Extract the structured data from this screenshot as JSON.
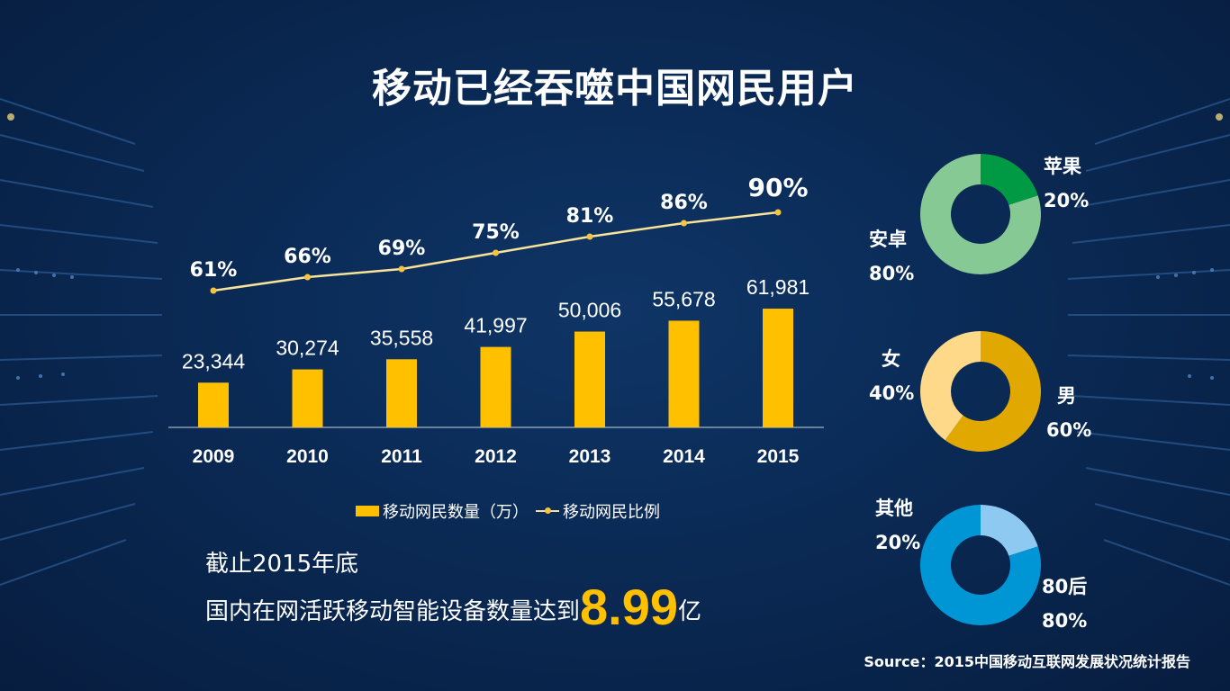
{
  "title": "移动已经吞噬中国网民用户",
  "legend": {
    "bar_label": "移动网民数量（万）",
    "line_label": "移动网民比例"
  },
  "stats": {
    "line1": "截止2015年底",
    "line2_prefix": "国内在网活跃移动智能设备数量达到",
    "line2_number": "8.99",
    "line2_suffix": "亿"
  },
  "donuts": [
    {
      "segments": [
        {
          "name": "苹果",
          "pct": "20%",
          "value": 20,
          "color": "#009a44"
        },
        {
          "name": "安卓",
          "pct": "80%",
          "value": 80,
          "color": "#86c994"
        }
      ]
    },
    {
      "segments": [
        {
          "name": "男",
          "pct": "60%",
          "value": 60,
          "color": "#e0a800"
        },
        {
          "name": "女",
          "pct": "40%",
          "value": 40,
          "color": "#ffd98a"
        }
      ]
    },
    {
      "segments": [
        {
          "name": "80后",
          "pct": "80%",
          "value": 80,
          "color": "#0096d6"
        },
        {
          "name": "其他",
          "pct": "20%",
          "value": 20,
          "color": "#8ec9f2"
        }
      ]
    }
  ],
  "source": "Source：2015中国移动互联网发展状况统计报告",
  "chart_data": {
    "type": "bar+line",
    "categories": [
      "2009",
      "2010",
      "2011",
      "2012",
      "2013",
      "2014",
      "2015"
    ],
    "series": [
      {
        "name": "移动网民数量（万）",
        "type": "bar",
        "color": "#ffc000",
        "values": [
          23344,
          30274,
          35558,
          41997,
          50006,
          55678,
          61981
        ],
        "labels": [
          "23,344",
          "30,274",
          "35,558",
          "41,997",
          "50,006",
          "55,678",
          "61,981"
        ]
      },
      {
        "name": "移动网民比例",
        "type": "line",
        "color": "#f7e39a",
        "values": [
          61,
          66,
          69,
          75,
          81,
          86,
          90
        ],
        "labels": [
          "61%",
          "66%",
          "69%",
          "75%",
          "81%",
          "86%",
          "90%"
        ]
      }
    ]
  }
}
